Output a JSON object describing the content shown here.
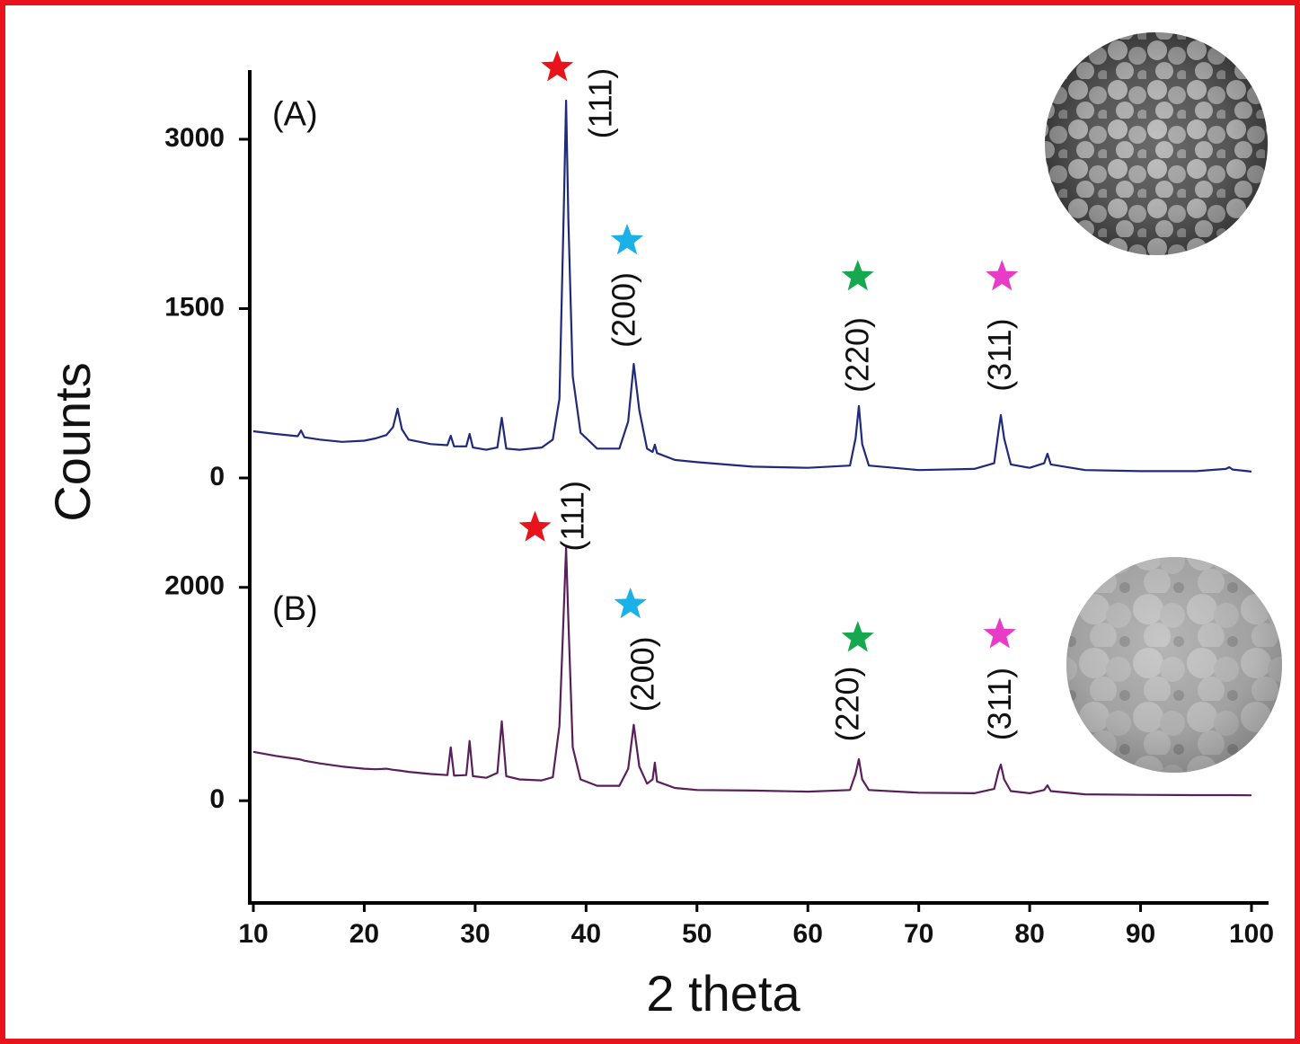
{
  "chart_data": [
    {
      "type": "line",
      "label": "(A)",
      "ylabel": "Counts",
      "x": [
        10,
        12,
        14,
        14.3,
        14.6,
        16,
        18,
        20,
        21,
        22,
        22.6,
        23,
        23.4,
        24,
        26,
        27.5,
        27.8,
        28.1,
        29.2,
        29.5,
        29.8,
        31,
        32,
        32.4,
        32.8,
        34,
        36,
        37,
        37.6,
        38,
        38.2,
        38.4,
        38.8,
        39.5,
        41,
        43,
        43.8,
        44.3,
        44.8,
        45.5,
        46,
        46.2,
        46.4,
        48,
        50,
        55,
        60,
        63.8,
        64.3,
        64.6,
        64.9,
        65.5,
        70,
        75,
        76.8,
        77.2,
        77.4,
        77.7,
        78.3,
        80,
        81.3,
        81.6,
        81.9,
        85,
        90,
        95,
        97.7,
        98,
        98.3,
        100
      ],
      "series": [
        {
          "color": "#1f2a7a",
          "values": [
            414,
            390,
            370,
            420,
            360,
            340,
            320,
            330,
            350,
            380,
            450,
            613,
            430,
            340,
            300,
            290,
            374,
            280,
            280,
            390,
            270,
            250,
            270,
            533,
            260,
            250,
            270,
            340,
            700,
            2400,
            3342,
            2300,
            900,
            400,
            260,
            260,
            500,
            1010,
            600,
            260,
            230,
            295,
            220,
            160,
            140,
            100,
            90,
            110,
            350,
            637,
            300,
            110,
            70,
            80,
            130,
            420,
            557,
            350,
            120,
            90,
            130,
            215,
            120,
            70,
            60,
            60,
            80,
            95,
            75,
            56
          ]
        }
      ],
      "xlim": [
        10,
        100
      ],
      "ylim": [
        -250,
        3600
      ],
      "yticks": [
        0,
        1500,
        3000
      ],
      "annotations": [
        {
          "text": "(111)",
          "x": 41.5,
          "y": 3318,
          "star_x": 37.4,
          "star_y": 3636,
          "color": "#e8141c"
        },
        {
          "text": "(200)",
          "x": 43.6,
          "y": 1488,
          "star_x": 43.7,
          "star_y": 2101,
          "color": "#1ab0e8"
        },
        {
          "text": "(220)",
          "x": 64.7,
          "y": 1090,
          "star_x": 64.5,
          "star_y": 1782,
          "color": "#16a84e"
        },
        {
          "text": "(311)",
          "x": 77.5,
          "y": 1090,
          "star_x": 77.5,
          "star_y": 1782,
          "color": "#e83cc8"
        }
      ]
    },
    {
      "type": "line",
      "label": "(B)",
      "xlabel": "2 theta",
      "x": [
        10,
        12,
        14,
        14.3,
        14.6,
        16,
        18,
        20,
        21,
        22,
        22.6,
        23,
        23.4,
        24,
        26,
        27.5,
        27.8,
        28.1,
        29.2,
        29.5,
        29.8,
        31,
        32,
        32.4,
        32.8,
        34,
        36,
        37,
        37.6,
        38,
        38.2,
        38.4,
        38.8,
        39.5,
        41,
        43,
        43.8,
        44.3,
        44.8,
        45.5,
        46,
        46.2,
        46.4,
        48,
        50,
        55,
        60,
        63.8,
        64.3,
        64.6,
        64.9,
        65.5,
        70,
        75,
        76.8,
        77.2,
        77.4,
        77.7,
        78.3,
        80,
        81.3,
        81.6,
        81.9,
        85,
        90,
        95,
        97.7,
        98,
        98.3,
        100
      ],
      "series": [
        {
          "color": "#5a1f5a",
          "values": [
            458,
            420,
            390,
            385,
            375,
            350,
            320,
            300,
            295,
            300,
            290,
            285,
            280,
            270,
            250,
            240,
            500,
            235,
            240,
            560,
            230,
            215,
            260,
            745,
            230,
            200,
            190,
            220,
            700,
            1800,
            2373,
            1700,
            500,
            200,
            140,
            140,
            300,
            712,
            320,
            160,
            200,
            356,
            180,
            120,
            100,
            95,
            85,
            100,
            250,
            390,
            200,
            100,
            75,
            70,
            110,
            280,
            339,
            200,
            90,
            70,
            100,
            144,
            90,
            60,
            55,
            52,
            52,
            52,
            52,
            51
          ]
        }
      ],
      "xlim": [
        10,
        100
      ],
      "xticks": [
        10,
        20,
        30,
        40,
        50,
        60,
        70,
        80,
        90,
        100
      ],
      "ylim": [
        -950,
        2200
      ],
      "yticks": [
        0,
        2000
      ],
      "annotations": [
        {
          "text": "(111)",
          "x": 39.0,
          "y": 2669,
          "star_x": 35.4,
          "star_y": 2559,
          "color": "#e8141c"
        },
        {
          "text": "(200)",
          "x": 45.3,
          "y": 1186,
          "star_x": 44.0,
          "star_y": 1839,
          "color": "#1ab0e8"
        },
        {
          "text": "(220)",
          "x": 63.8,
          "y": 907,
          "star_x": 64.5,
          "star_y": 1525,
          "color": "#16a84e"
        },
        {
          "text": "(311)",
          "x": 77.5,
          "y": 907,
          "star_x": 77.3,
          "star_y": 1559,
          "color": "#e83cc8"
        }
      ]
    }
  ]
}
